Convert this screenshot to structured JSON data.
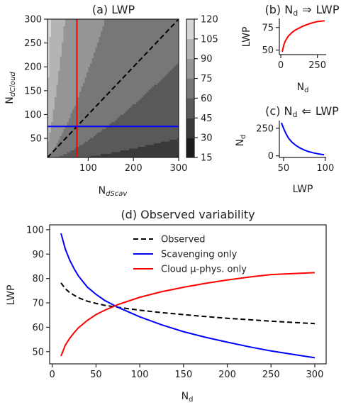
{
  "chart_data": [
    {
      "id": "a",
      "type": "heatmap",
      "title": "(a) LWP",
      "xlabel": "N",
      "xlabel_sub": "dScav",
      "ylabel": "N",
      "ylabel_sub": "dCloud",
      "xlim": [
        10,
        300
      ],
      "ylim": [
        10,
        300
      ],
      "xticks": [
        "100",
        "200",
        "300"
      ],
      "yticks": [
        "50",
        "100",
        "150",
        "200",
        "250",
        "300"
      ],
      "colorbar": {
        "levels": [
          15,
          30,
          45,
          60,
          75,
          90,
          105,
          120
        ],
        "ticks": [
          "15",
          "30",
          "45",
          "60",
          "75",
          "90",
          "105",
          "120"
        ],
        "colors": [
          "#1c1c1c",
          "#3a3a3a",
          "#595959",
          "#777777",
          "#959595",
          "#b4b4b4",
          "#d6d6d6"
        ]
      },
      "lines": [
        {
          "name": "diagonal",
          "color": "#000000",
          "style": "dashed",
          "x": [
            10,
            300
          ],
          "y": [
            10,
            300
          ]
        },
        {
          "name": "vertical",
          "color": "#ff0000",
          "style": "solid",
          "x": [
            75,
            75
          ],
          "y": [
            10,
            300
          ]
        },
        {
          "name": "horizontal",
          "color": "#0000ff",
          "style": "solid",
          "x": [
            10,
            300
          ],
          "y": [
            75,
            75
          ]
        }
      ]
    },
    {
      "id": "b",
      "type": "line",
      "title_pre": "(b) N",
      "title_sub": "d",
      "title_arrow": "⇒",
      "title_post": "LWP",
      "xlabel": "N",
      "xlabel_sub": "d",
      "ylabel": "LWP",
      "xlim": [
        -10,
        310
      ],
      "ylim": [
        45,
        85
      ],
      "xticks": [
        "0",
        "250"
      ],
      "yticks": [
        "50",
        "75"
      ],
      "series": [
        {
          "color": "#ff0000",
          "x": [
            10,
            20,
            30,
            50,
            75,
            100,
            150,
            200,
            250,
            300
          ],
          "y": [
            48.2,
            55.5,
            59.8,
            65.2,
            69.3,
            72.3,
            76.4,
            79.4,
            81.6,
            82.4
          ]
        }
      ]
    },
    {
      "id": "c",
      "type": "line",
      "title_pre": "(c) N",
      "title_sub": "d",
      "title_arrow": "⇐",
      "title_post": "LWP",
      "xlabel": "LWP",
      "ylabel": "N",
      "ylabel_sub": "d",
      "xlim": [
        45,
        101
      ],
      "ylim": [
        -15,
        320
      ],
      "xticks": [
        "50",
        "100"
      ],
      "yticks": [
        "0",
        "250"
      ],
      "series": [
        {
          "color": "#0000ff",
          "x": [
            47.5,
            50,
            53,
            56,
            60,
            65,
            70,
            75,
            80,
            85,
            90,
            95,
            98.5
          ],
          "y": [
            300,
            250,
            200,
            160,
            124,
            93,
            70,
            52,
            38,
            28,
            20,
            13,
            10
          ]
        }
      ]
    },
    {
      "id": "d",
      "type": "line",
      "title": "(d) Observed variability",
      "xlabel": "N",
      "xlabel_sub": "d",
      "ylabel": "LWP",
      "xlim": [
        -3,
        313
      ],
      "ylim": [
        45,
        102
      ],
      "xticks": [
        "0",
        "50",
        "100",
        "150",
        "200",
        "250",
        "300"
      ],
      "yticks": [
        "50",
        "60",
        "70",
        "80",
        "90",
        "100"
      ],
      "legend_position": "upper-center",
      "series": [
        {
          "name": "Observed",
          "color": "#000000",
          "style": "dashed",
          "x": [
            10,
            15,
            20,
            30,
            40,
            50,
            60,
            75,
            100,
            125,
            150,
            175,
            200,
            225,
            250,
            275,
            300
          ],
          "y": [
            78.2,
            75.8,
            74.2,
            72.1,
            70.7,
            69.8,
            69.0,
            68.2,
            67.0,
            66.0,
            65.2,
            64.4,
            63.7,
            63.1,
            62.5,
            62.0,
            61.5
          ]
        },
        {
          "name": "Scavenging only",
          "color": "#0000ff",
          "style": "solid",
          "x": [
            10,
            15,
            20,
            25,
            30,
            40,
            50,
            60,
            75,
            100,
            125,
            150,
            175,
            200,
            225,
            250,
            275,
            300
          ],
          "y": [
            98.5,
            92.0,
            87.5,
            84.0,
            81.0,
            76.5,
            73.5,
            71.0,
            68.2,
            64.3,
            61.0,
            58.2,
            55.9,
            53.9,
            52.0,
            50.3,
            48.9,
            47.5
          ]
        },
        {
          "name": "Cloud μ-phys. only",
          "color": "#ff0000",
          "style": "solid",
          "x": [
            10,
            15,
            20,
            25,
            30,
            40,
            50,
            60,
            75,
            100,
            125,
            150,
            175,
            200,
            225,
            250,
            275,
            300
          ],
          "y": [
            48.2,
            52.7,
            55.5,
            57.8,
            59.8,
            62.8,
            65.2,
            67.0,
            69.3,
            72.3,
            74.6,
            76.4,
            78.0,
            79.4,
            80.6,
            81.6,
            82.0,
            82.4
          ]
        }
      ]
    }
  ]
}
